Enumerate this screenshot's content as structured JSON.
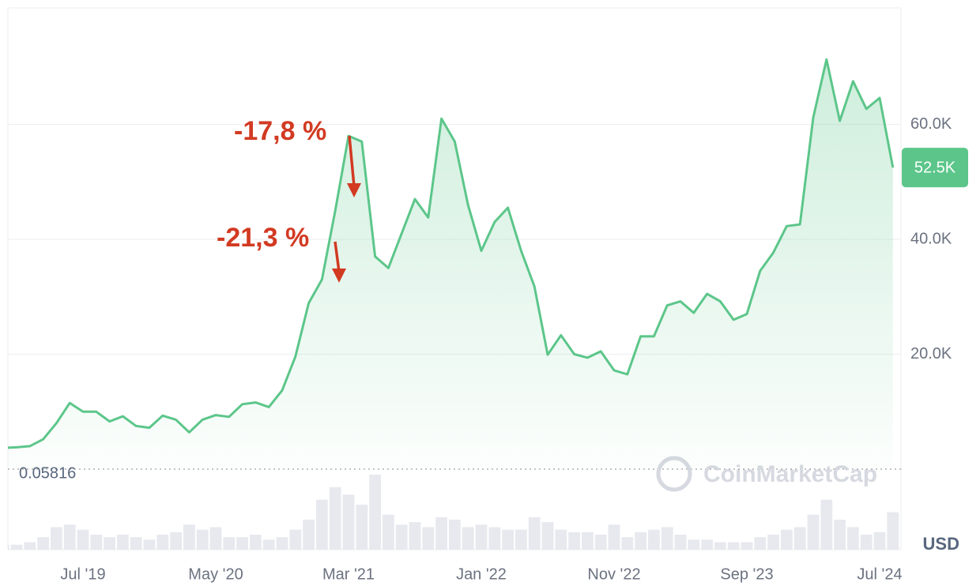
{
  "chart_data": {
    "type": "line",
    "x": [
      "2019-01",
      "2019-02",
      "2019-03",
      "2019-04",
      "2019-05",
      "2019-06",
      "2019-07",
      "2019-08",
      "2019-09",
      "2019-10",
      "2019-11",
      "2019-12",
      "2020-01",
      "2020-02",
      "2020-03",
      "2020-04",
      "2020-05",
      "2020-06",
      "2020-07",
      "2020-08",
      "2020-09",
      "2020-10",
      "2020-11",
      "2020-12",
      "2021-01",
      "2021-02",
      "2021-03",
      "2021-04",
      "2021-05",
      "2021-06",
      "2021-07",
      "2021-08",
      "2021-09",
      "2021-10",
      "2021-11",
      "2021-12",
      "2022-01",
      "2022-02",
      "2022-03",
      "2022-04",
      "2022-05",
      "2022-06",
      "2022-07",
      "2022-08",
      "2022-09",
      "2022-10",
      "2022-11",
      "2022-12",
      "2023-01",
      "2023-02",
      "2023-03",
      "2023-04",
      "2023-05",
      "2023-06",
      "2023-07",
      "2023-08",
      "2023-09",
      "2023-10",
      "2023-11",
      "2023-12",
      "2024-01",
      "2024-02",
      "2024-03",
      "2024-04",
      "2024-05",
      "2024-06",
      "2024-07",
      "2024-08"
    ],
    "series": [
      {
        "color": "#5cc68a",
        "values": [
          3700,
          3800,
          4000,
          5200,
          8000,
          11500,
          10000,
          10000,
          8300,
          9200,
          7500,
          7200,
          9300,
          8600,
          6400,
          8600,
          9400,
          9100,
          11300,
          11600,
          10800,
          13700,
          19600,
          28900,
          33000,
          45000,
          58000,
          57000,
          37000,
          35000,
          41000,
          47000,
          43800,
          61000,
          57000,
          46000,
          38000,
          43000,
          45500,
          38000,
          31800,
          19900,
          23300,
          20000,
          19400,
          20500,
          17200,
          16500,
          23100,
          23100,
          28500,
          29200,
          27200,
          30500,
          29200,
          26000,
          27000,
          34500,
          37700,
          42300,
          42600,
          61200,
          71300,
          60600,
          67500,
          62700,
          64600,
          52500
        ]
      }
    ],
    "volume": [
      2,
      2,
      3,
      5,
      9,
      10,
      8,
      6,
      5,
      6,
      5,
      4,
      6,
      7,
      10,
      8,
      9,
      5,
      5,
      6,
      4,
      5,
      8,
      12,
      20,
      25,
      22,
      18,
      30,
      14,
      10,
      11,
      9,
      13,
      12,
      9,
      10,
      9,
      8,
      8,
      13,
      11,
      8,
      7,
      7,
      6,
      10,
      5,
      7,
      8,
      9,
      6,
      4,
      4,
      3,
      3,
      3,
      5,
      6,
      8,
      9,
      14,
      20,
      12,
      9,
      6,
      7,
      15
    ],
    "ylim": [
      0,
      80000
    ],
    "yticks": [
      {
        "value": 20000,
        "label": "20.0K"
      },
      {
        "value": 40000,
        "label": "40.0K"
      },
      {
        "value": 60000,
        "label": "60.0K"
      }
    ],
    "xticks": [
      {
        "value": "2019-07",
        "label": "Jul '19"
      },
      {
        "value": "2020-05",
        "label": "May '20"
      },
      {
        "value": "2021-03",
        "label": "Mar '21"
      },
      {
        "value": "2022-01",
        "label": "Jan '22"
      },
      {
        "value": "2022-11",
        "label": "Nov '22"
      },
      {
        "value": "2023-09",
        "label": "Sep '23"
      },
      {
        "value": "2024-07",
        "label": "Jul '24"
      }
    ],
    "baseline": 0.05816,
    "current": {
      "value": 52500,
      "label": "52.5K"
    },
    "currency": "USD",
    "watermark": "CoinMarketCap",
    "annotations": [
      "-17,8 %",
      "-21,3 %"
    ],
    "grid": true
  }
}
